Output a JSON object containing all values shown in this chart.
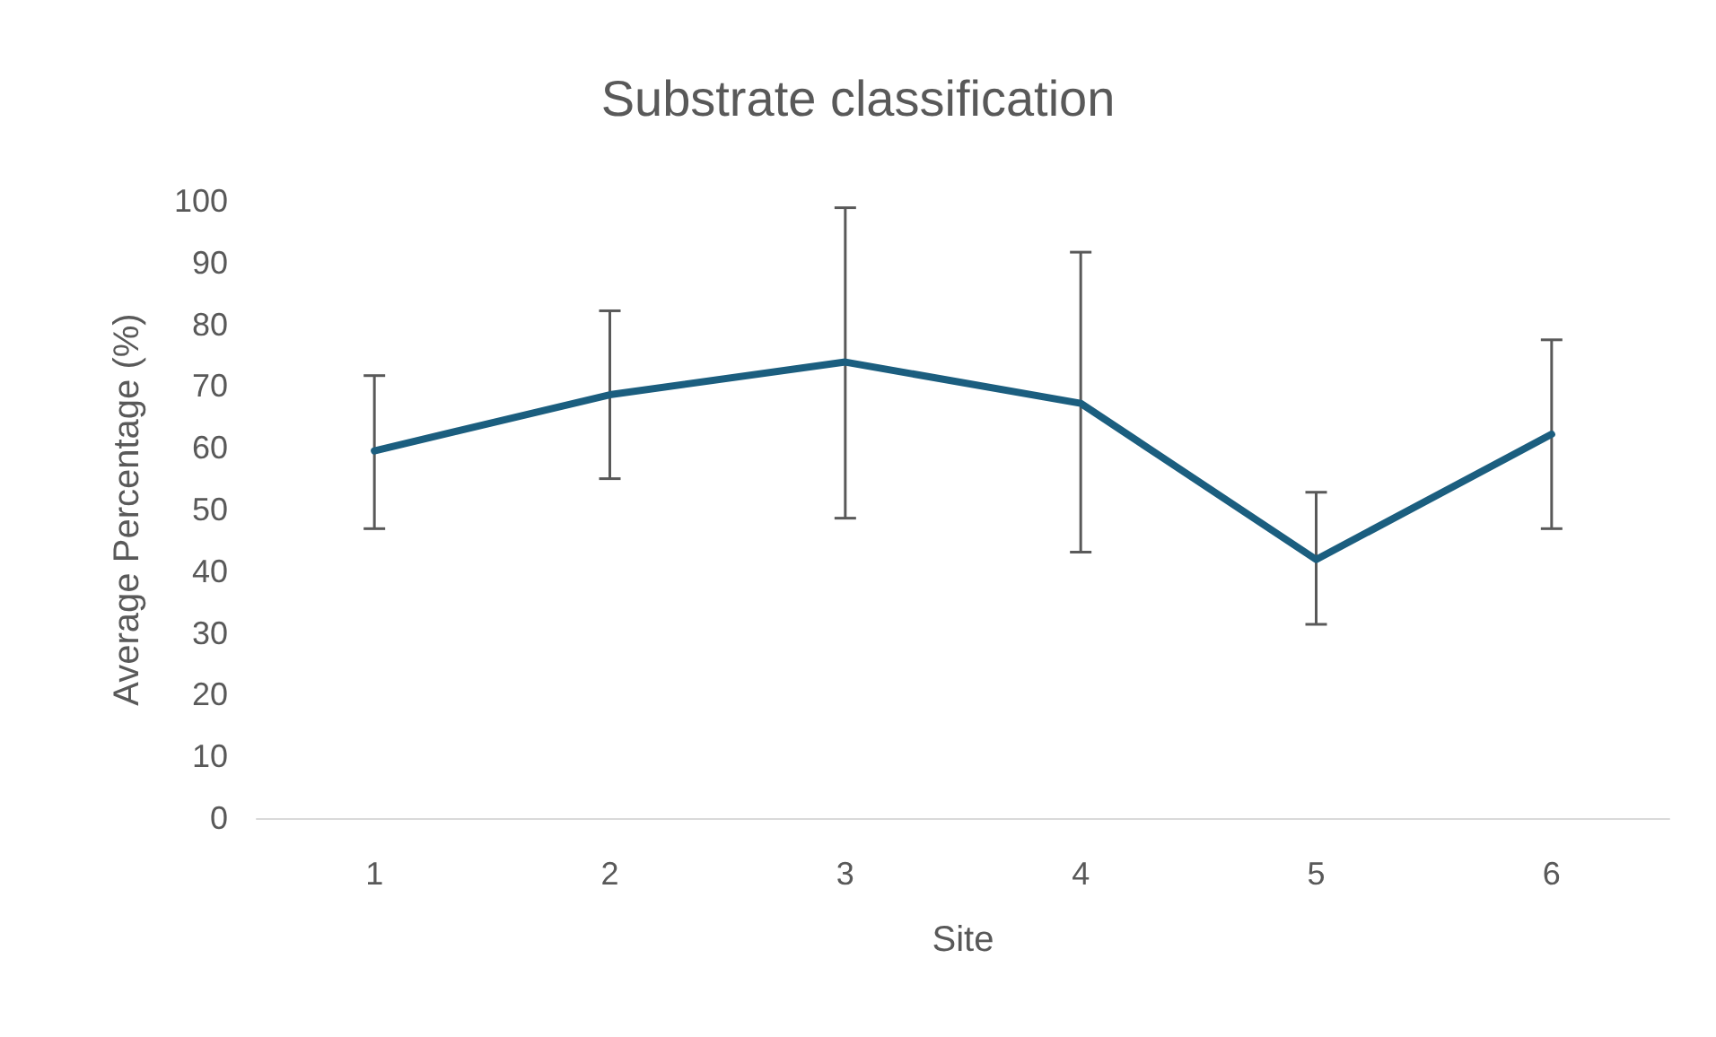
{
  "chart_data": {
    "type": "line",
    "title": "Substrate classification",
    "xlabel": "Site",
    "ylabel": "Average Percentage (%)",
    "categories": [
      "1",
      "2",
      "3",
      "4",
      "5",
      "6"
    ],
    "series": [
      {
        "color": "#1b5e7f",
        "values": [
          59.5,
          68.6,
          73.9,
          67.2,
          41.9,
          62.2
        ],
        "errors": [
          [
            46.9,
            71.7
          ],
          [
            55,
            82.2
          ],
          [
            48.6,
            98.9
          ],
          [
            43.1,
            91.7
          ],
          [
            31.4,
            52.8
          ],
          [
            46.9,
            77.5
          ]
        ]
      }
    ],
    "ylim": [
      0,
      100
    ],
    "yticks": [
      0,
      10,
      20,
      30,
      40,
      50,
      60,
      70,
      80,
      90,
      100
    ],
    "grid": false,
    "marker": "none",
    "line_style": "solid"
  }
}
